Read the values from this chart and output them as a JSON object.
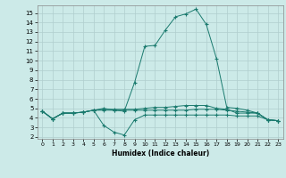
{
  "xlabel": "Humidex (Indice chaleur)",
  "xlim": [
    -0.5,
    23.5
  ],
  "ylim": [
    1.8,
    15.8
  ],
  "yticks": [
    2,
    3,
    4,
    5,
    6,
    7,
    8,
    9,
    10,
    11,
    12,
    13,
    14,
    15
  ],
  "xticks": [
    0,
    1,
    2,
    3,
    4,
    5,
    6,
    7,
    8,
    9,
    10,
    11,
    12,
    13,
    14,
    15,
    16,
    17,
    18,
    19,
    20,
    21,
    22,
    23
  ],
  "bg_color": "#cceae8",
  "line_color": "#1a7a6e",
  "grid_color": "#b0cece",
  "curves": [
    {
      "x": [
        0,
        1,
        2,
        3,
        4,
        5,
        6,
        7,
        8,
        9,
        10,
        11,
        12,
        13,
        14,
        15,
        16,
        17,
        18,
        19,
        20,
        21,
        22,
        23
      ],
      "y": [
        4.7,
        3.9,
        4.5,
        4.5,
        4.6,
        4.8,
        5.0,
        4.8,
        4.7,
        7.7,
        11.5,
        11.6,
        13.2,
        14.6,
        14.9,
        15.4,
        13.8,
        10.2,
        5.1,
        5.0,
        4.8,
        4.5,
        3.8,
        3.7
      ]
    },
    {
      "x": [
        0,
        1,
        2,
        3,
        4,
        5,
        6,
        7,
        8,
        9,
        10,
        11,
        12,
        13,
        14,
        15,
        16,
        17,
        18,
        19,
        20,
        21,
        22,
        23
      ],
      "y": [
        4.7,
        3.9,
        4.5,
        4.5,
        4.6,
        4.8,
        3.2,
        2.5,
        2.2,
        3.8,
        4.3,
        4.3,
        4.3,
        4.3,
        4.3,
        4.3,
        4.3,
        4.3,
        4.3,
        4.2,
        4.2,
        4.2,
        3.8,
        3.7
      ]
    },
    {
      "x": [
        0,
        1,
        2,
        3,
        4,
        5,
        6,
        7,
        8,
        9,
        10,
        11,
        12,
        13,
        14,
        15,
        16,
        17,
        18,
        19,
        20,
        21,
        22,
        23
      ],
      "y": [
        4.7,
        3.9,
        4.5,
        4.5,
        4.6,
        4.8,
        4.8,
        4.8,
        4.8,
        4.8,
        4.8,
        4.8,
        4.8,
        4.8,
        4.8,
        4.9,
        4.9,
        4.9,
        4.8,
        4.7,
        4.6,
        4.5,
        3.8,
        3.7
      ]
    },
    {
      "x": [
        0,
        1,
        2,
        3,
        4,
        5,
        6,
        7,
        8,
        9,
        10,
        11,
        12,
        13,
        14,
        15,
        16,
        17,
        18,
        19,
        20,
        21,
        22,
        23
      ],
      "y": [
        4.7,
        3.9,
        4.5,
        4.5,
        4.6,
        4.8,
        4.9,
        4.9,
        4.9,
        4.9,
        5.0,
        5.1,
        5.1,
        5.2,
        5.3,
        5.3,
        5.3,
        5.0,
        4.9,
        4.5,
        4.5,
        4.5,
        3.8,
        3.7
      ]
    }
  ]
}
